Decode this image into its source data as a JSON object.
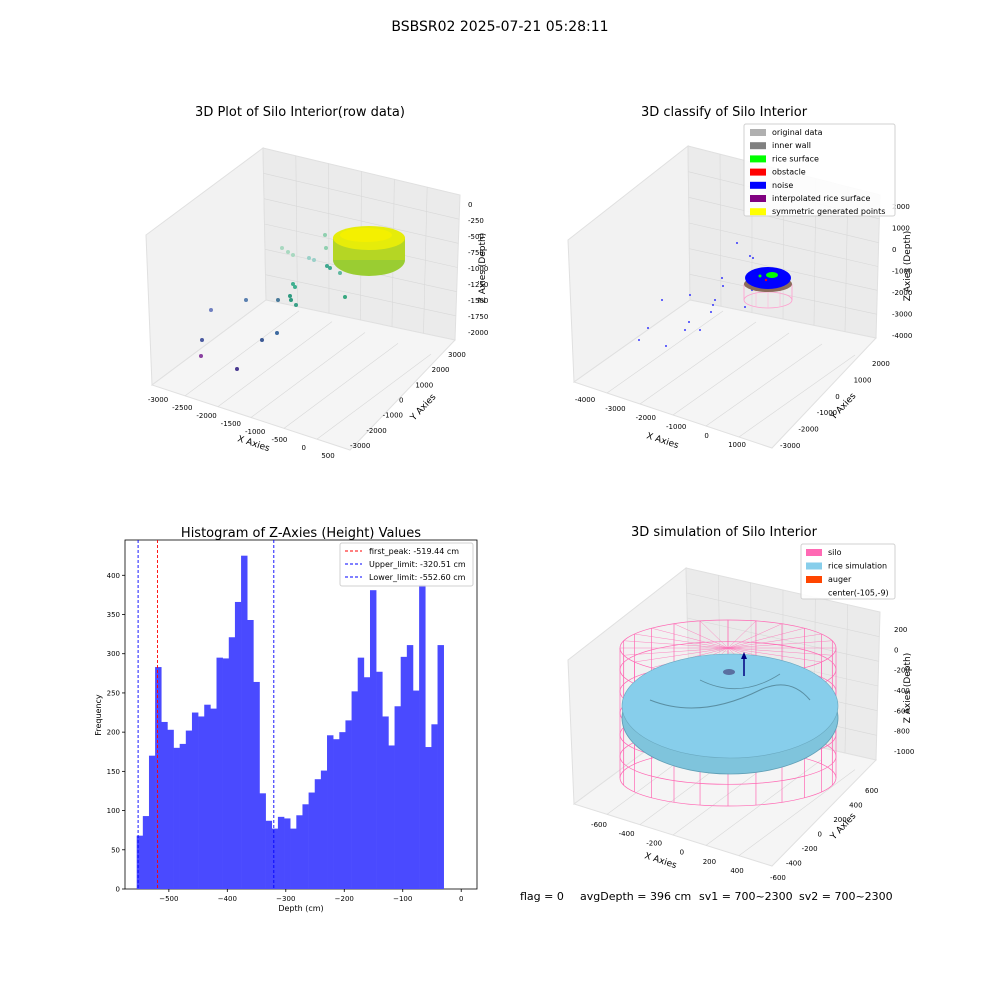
{
  "suptitle": "BSBSR02 2025-07-21 05:28:11",
  "footer": {
    "flag": "flag = 0",
    "avg": "avgDepth = 396 cm",
    "sv1": "sv1 = 700~2300",
    "sv2": "sv2 = 700~2300"
  },
  "colors": {
    "hist_bar": "#4a4aff",
    "first_peak": "#ff0000",
    "limit": "#0000ff",
    "silo": "#ff69b4",
    "rice": "#87ceeb",
    "auger": "#ff4500"
  },
  "chart_data": [
    {
      "type": "scatter",
      "title": "3D Plot of Silo Interior(row data)",
      "xlabel": "X Axies",
      "ylabel": "Y Axies",
      "zlabel": "Z Axies (Depth)",
      "x_ticks": [
        "-3000",
        "-2500",
        "-2000",
        "-1500",
        "-1000",
        "-500",
        "0",
        "500"
      ],
      "y_ticks": [
        "3000",
        "2000",
        "1000",
        "0",
        "-1000",
        "-2000",
        "-3000"
      ],
      "z_ticks": [
        "0",
        "-250",
        "-500",
        "-750",
        "-1000",
        "-1250",
        "-1500",
        "-1750",
        "-2000"
      ]
    },
    {
      "type": "scatter",
      "title": "3D classify of Silo Interior",
      "xlabel": "X Axies",
      "ylabel": "Y Axies",
      "zlabel": "Z Axies (Depth)",
      "x_ticks": [
        "-4000",
        "-3000",
        "-2000",
        "-1000",
        "0",
        "1000"
      ],
      "y_ticks": [
        "2000",
        "1000",
        "0",
        "-1000",
        "-2000",
        "-3000"
      ],
      "z_ticks": [
        "2000",
        "1000",
        "0",
        "-1000",
        "-2000",
        "-3000",
        "-4000"
      ],
      "legend": [
        {
          "label": "original data",
          "color": "#b0b0b0"
        },
        {
          "label": "inner wall",
          "color": "#808080"
        },
        {
          "label": "rice surface",
          "color": "#00ff00"
        },
        {
          "label": "obstacle",
          "color": "#ff0000"
        },
        {
          "label": "noise",
          "color": "#0000ff"
        },
        {
          "label": "interpolated rice surface",
          "color": "#800080"
        },
        {
          "label": "symmetric generated points",
          "color": "#ffff00"
        }
      ]
    },
    {
      "type": "bar",
      "title": "Histogram of Z-Axies (Height) Values",
      "xlabel": "Depth (cm)",
      "ylabel": "Frequency",
      "xlim": [
        -575,
        27
      ],
      "ylim": [
        0,
        445
      ],
      "x_ticks": [
        -500,
        -400,
        -300,
        -200,
        -100,
        0
      ],
      "y_ticks": [
        0,
        50,
        100,
        150,
        200,
        250,
        300,
        350,
        400
      ],
      "bins": {
        "start": -555,
        "width": 10.5
      },
      "values": [
        68,
        93,
        170,
        283,
        213,
        203,
        180,
        185,
        202,
        225,
        220,
        235,
        230,
        295,
        294,
        321,
        366,
        425,
        343,
        264,
        122,
        87,
        77,
        92,
        90,
        77,
        94,
        108,
        123,
        140,
        151,
        196,
        191,
        200,
        215,
        252,
        295,
        270,
        381,
        277,
        220,
        183,
        233,
        296,
        311,
        253,
        388,
        181,
        210,
        311
      ],
      "legend": [
        {
          "label": "first_peak: -519.44 cm",
          "x": -519.44,
          "style": "first_peak"
        },
        {
          "label": "Upper_limit: -320.51 cm",
          "x": -320.51,
          "style": "limit"
        },
        {
          "label": "Lower_limit: -552.60 cm",
          "x": -552.6,
          "style": "limit"
        }
      ]
    },
    {
      "type": "area",
      "title": "3D simulation of Silo Interior",
      "xlabel": "X Axies",
      "ylabel": "Y Axies",
      "zlabel": "Z Axies (Depth)",
      "x_ticks": [
        "-600",
        "-400",
        "-200",
        "0",
        "200",
        "400"
      ],
      "y_ticks": [
        "600",
        "400",
        "200",
        "0",
        "-200",
        "-400",
        "-600"
      ],
      "z_ticks": [
        "200",
        "0",
        "-200",
        "-400",
        "-600",
        "-800",
        "-1000"
      ],
      "legend": [
        {
          "label": "silo",
          "color": "#ff69b4"
        },
        {
          "label": "rice simulation",
          "color": "#87ceeb"
        },
        {
          "label": "auger",
          "color": "#ff4500"
        },
        {
          "label": "center(-105,-9)",
          "color": ""
        }
      ]
    }
  ]
}
